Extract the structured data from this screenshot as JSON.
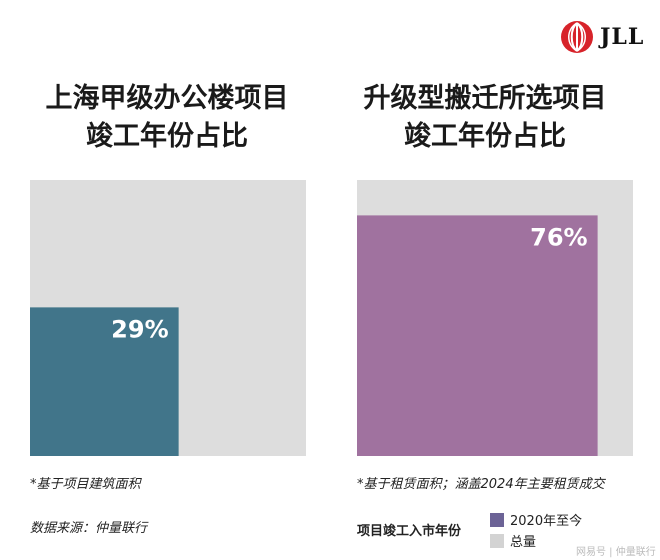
{
  "logo": {
    "text": "JLL"
  },
  "colors": {
    "background_total": "#dddddd",
    "left_bar": "#41758a",
    "right_bar": "#a0729f",
    "legend_gray": "#d3d3d3",
    "logo_red": "#d7232a"
  },
  "chart_data": [
    {
      "type": "bar",
      "title_lines": [
        "上海甲级办公楼项目",
        "竣工年份占比"
      ],
      "value": 29,
      "total": 100,
      "label": "29%",
      "footnote": "*基于项目建筑面积"
    },
    {
      "type": "bar",
      "title_lines": [
        "升级型搬迁所选项目",
        "竣工年份占比"
      ],
      "value": 76,
      "total": 100,
      "label": "76%",
      "footnote": "*基于租赁面积；涵盖2024年主要租赁成交"
    }
  ],
  "source": "数据来源：仲量联行",
  "legend": {
    "title": "项目竣工入市年份",
    "items": [
      {
        "label": "2020年至今",
        "color": "#6c6396"
      },
      {
        "label": "总量",
        "color": "#d3d3d3"
      }
    ]
  },
  "watermark": "网易号 | 仲量联行"
}
